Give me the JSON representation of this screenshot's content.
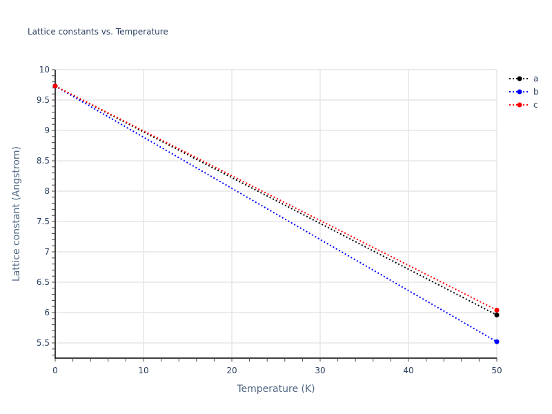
{
  "chart_data": {
    "type": "line",
    "title": "Lattice constants vs. Temperature",
    "xlabel": "Temperature (K)",
    "ylabel": "Lattice constant (Angstrom)",
    "xlim": [
      0,
      50
    ],
    "ylim": [
      5.25,
      10
    ],
    "x_ticks": [
      0,
      10,
      20,
      30,
      40,
      50
    ],
    "y_ticks": [
      5.5,
      6,
      6.5,
      7,
      7.5,
      8,
      8.5,
      9,
      9.5,
      10
    ],
    "x_tick_labels": [
      "0",
      "10",
      "20",
      "30",
      "40",
      "50"
    ],
    "y_tick_labels": [
      "5.5",
      "6",
      "6.5",
      "7",
      "7.5",
      "8",
      "8.5",
      "9",
      "9.5",
      "10"
    ],
    "grid": true,
    "legend_position": "top-right outside",
    "line_style": "dotted with markers at endpoints",
    "series": [
      {
        "name": "a",
        "color": "#000000",
        "x": [
          0,
          50
        ],
        "values": [
          9.73,
          5.96
        ]
      },
      {
        "name": "b",
        "color": "#0000ff",
        "x": [
          0,
          50
        ],
        "values": [
          9.73,
          5.52
        ]
      },
      {
        "name": "c",
        "color": "#ff0000",
        "x": [
          0,
          50
        ],
        "values": [
          9.73,
          6.04
        ]
      }
    ]
  },
  "legend": {
    "items": [
      {
        "label": "a",
        "color": "#000000"
      },
      {
        "label": "b",
        "color": "#0000ff"
      },
      {
        "label": "c",
        "color": "#ff0000"
      }
    ]
  }
}
